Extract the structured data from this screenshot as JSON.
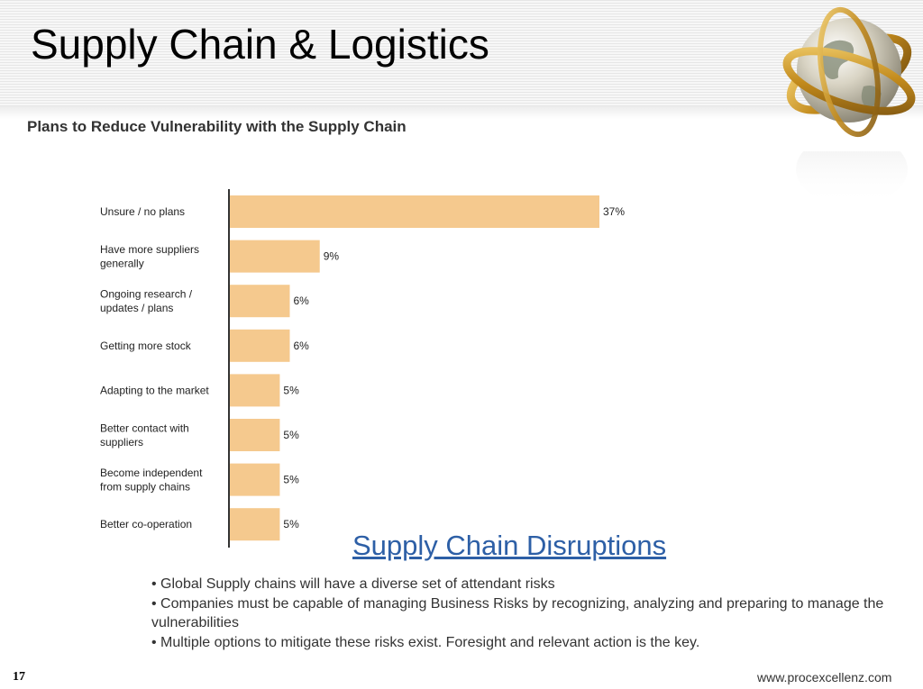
{
  "slide": {
    "title": "Supply Chain & Logistics",
    "page_number": "17",
    "website": "www.procexcellenz.com"
  },
  "theme": {
    "bar_color": "#f5c98e",
    "axis_color": "#333333",
    "link_color": "#2d5fa6"
  },
  "decor": {
    "globe": "globe-icon"
  },
  "chart_data": {
    "type": "bar",
    "orientation": "horizontal",
    "title": "Plans to Reduce Vulnerability with the Supply Chain",
    "categories": [
      "Unsure / no plans",
      "Have more suppliers generally",
      "Ongoing research / updates / plans",
      "Getting more stock",
      "Adapting to the market",
      "Better contact with suppliers",
      "Become independent from supply chains",
      "Better co-operation"
    ],
    "category_lines": [
      [
        "Unsure / no plans"
      ],
      [
        "Have more suppliers",
        "generally"
      ],
      [
        "Ongoing research /",
        "updates / plans"
      ],
      [
        "Getting more stock"
      ],
      [
        "Adapting to the market"
      ],
      [
        "Better contact with",
        "suppliers"
      ],
      [
        "Become independent",
        "from supply chains"
      ],
      [
        "Better co-operation"
      ]
    ],
    "values": [
      37,
      9,
      6,
      6,
      5,
      5,
      5,
      5
    ],
    "value_labels": [
      "37%",
      "9%",
      "6%",
      "6%",
      "5%",
      "5%",
      "5%",
      "5%"
    ],
    "xlabel": "",
    "ylabel": "",
    "xlim": [
      0,
      37
    ],
    "grid": false
  },
  "section": {
    "title": "Supply Chain Disruptions",
    "bullets": [
      "• Global Supply chains will have a diverse set of attendant risks",
      "• Companies must be capable of managing Business Risks by recognizing, analyzing and preparing to manage the vulnerabilities",
      "• Multiple options to mitigate these risks exist. Foresight and relevant action is the key."
    ]
  }
}
